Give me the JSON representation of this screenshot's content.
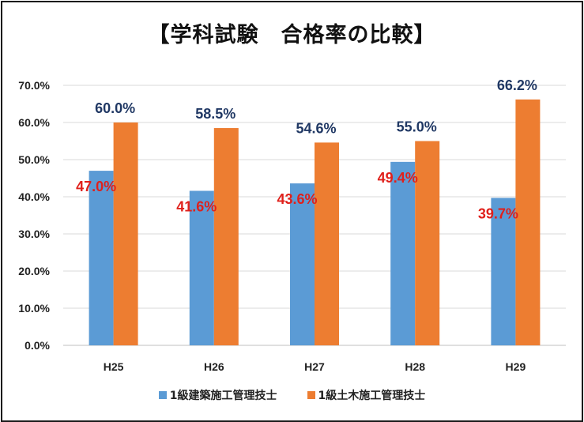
{
  "chart_data": {
    "type": "bar",
    "title": "【学科試験　合格率の比較】",
    "categories": [
      "H25",
      "H26",
      "H27",
      "H28",
      "H29"
    ],
    "series": [
      {
        "name": "1級建築施工管理技士",
        "values": [
          47.0,
          41.6,
          43.6,
          49.4,
          39.7
        ],
        "labels": [
          "47.0%",
          "41.6%",
          "43.6%",
          "49.4%",
          "39.7%"
        ],
        "color": "#5b9bd5",
        "label_color": "#e0201b"
      },
      {
        "name": "1級土木施工管理技士",
        "values": [
          60.0,
          58.5,
          54.6,
          55.0,
          66.2
        ],
        "labels": [
          "60.0%",
          "58.5%",
          "54.6%",
          "55.0%",
          "66.2%"
        ],
        "color": "#ed7d31",
        "label_color": "#203864"
      }
    ],
    "ylim": [
      0,
      70
    ],
    "yticks": [
      "0.0%",
      "10.0%",
      "20.0%",
      "30.0%",
      "40.0%",
      "50.0%",
      "60.0%",
      "70.0%"
    ],
    "grid": true,
    "legend": "bottom"
  }
}
